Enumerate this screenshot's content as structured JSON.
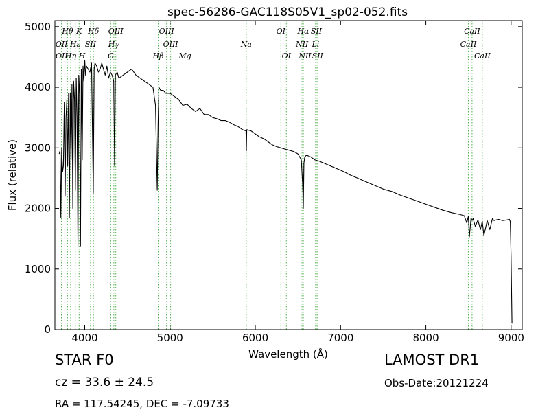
{
  "chart_data": {
    "type": "line",
    "title": "spec-56286-GAC118S05V1_sp02-052.fits",
    "xlabel": "Wavelength (Å)",
    "ylabel": "Flux (relative)",
    "xlim": [
      3650,
      9130
    ],
    "ylim": [
      0,
      5100
    ],
    "xticks": [
      4000,
      5000,
      6000,
      7000,
      8000,
      9000
    ],
    "yticks": [
      0,
      1000,
      2000,
      3000,
      4000,
      5000
    ],
    "grid": false,
    "line_color": "#000000",
    "marker_color": "#4daf4a",
    "series": [
      {
        "x": [
          3700,
          3710,
          3720,
          3730,
          3740,
          3750,
          3760,
          3770,
          3780,
          3790,
          3800,
          3810,
          3820,
          3830,
          3840,
          3850,
          3860,
          3870,
          3880,
          3890,
          3900,
          3910,
          3920,
          3930,
          3940,
          3950,
          3960,
          3970,
          3980,
          3990,
          4000,
          4010,
          4020,
          4040,
          4060,
          4080,
          4100,
          4110,
          4120,
          4140,
          4160,
          4180,
          4200,
          4220,
          4240,
          4260,
          4280,
          4300,
          4320,
          4340,
          4350,
          4360,
          4380,
          4400,
          4450,
          4500,
          4550,
          4600,
          4650,
          4700,
          4750,
          4800,
          4830,
          4850,
          4860,
          4870,
          4890,
          4920,
          4950,
          5000,
          5050,
          5100,
          5150,
          5200,
          5250,
          5300,
          5350,
          5400,
          5450,
          5500,
          5550,
          5600,
          5650,
          5700,
          5750,
          5800,
          5850,
          5890,
          5895,
          5900,
          5950,
          6000,
          6050,
          6100,
          6150,
          6200,
          6250,
          6300,
          6350,
          6400,
          6450,
          6500,
          6540,
          6555,
          6563,
          6570,
          6580,
          6600,
          6650,
          6700,
          6750,
          6800,
          6850,
          6900,
          6950,
          7000,
          7050,
          7100,
          7150,
          7200,
          7250,
          7300,
          7350,
          7400,
          7450,
          7500,
          7600,
          7700,
          7800,
          7900,
          8000,
          8100,
          8200,
          8300,
          8400,
          8450,
          8480,
          8498,
          8510,
          8530,
          8542,
          8555,
          8580,
          8610,
          8640,
          8662,
          8680,
          8720,
          8750,
          8780,
          8800,
          8850,
          8900,
          8950,
          8980,
          8990,
          9000,
          9010
        ],
        "y": [
          2900,
          2950,
          1850,
          3000,
          2600,
          2700,
          3750,
          2200,
          3500,
          3800,
          2700,
          3900,
          1850,
          3900,
          2800,
          4050,
          2000,
          4100,
          3800,
          2300,
          4150,
          3500,
          1380,
          4200,
          3900,
          1380,
          4300,
          2800,
          4350,
          4100,
          4450,
          4200,
          4350,
          4300,
          4250,
          4400,
          2250,
          4300,
          4400,
          4350,
          4250,
          4300,
          4400,
          4300,
          4200,
          4350,
          4150,
          4250,
          4200,
          4100,
          2700,
          4200,
          4250,
          4150,
          4200,
          4250,
          4300,
          4200,
          4150,
          4100,
          4050,
          4000,
          3700,
          2300,
          3400,
          4000,
          3950,
          3950,
          3900,
          3900,
          3850,
          3800,
          3700,
          3720,
          3650,
          3600,
          3650,
          3550,
          3550,
          3500,
          3480,
          3450,
          3450,
          3420,
          3380,
          3350,
          3300,
          3280,
          2950,
          3300,
          3280,
          3230,
          3180,
          3150,
          3100,
          3050,
          3020,
          3000,
          2980,
          2960,
          2940,
          2900,
          2800,
          2400,
          2000,
          2750,
          2850,
          2880,
          2850,
          2800,
          2780,
          2750,
          2720,
          2690,
          2660,
          2630,
          2600,
          2560,
          2530,
          2500,
          2470,
          2440,
          2410,
          2380,
          2350,
          2320,
          2280,
          2220,
          2170,
          2120,
          2070,
          2020,
          1970,
          1930,
          1900,
          1880,
          1760,
          1870,
          1530,
          1840,
          1800,
          1830,
          1700,
          1810,
          1650,
          1790,
          1550,
          1800,
          1650,
          1830,
          1800,
          1820,
          1800,
          1810,
          1820,
          1780,
          1200,
          100
        ]
      }
    ],
    "lines": [
      {
        "label": "OII",
        "wave": 3727,
        "row": 2
      },
      {
        "label": "OII",
        "wave": 3729,
        "row": 3
      },
      {
        "label": "Hθ",
        "wave": 3798,
        "row": 1
      },
      {
        "label": "Hη",
        "wave": 3835,
        "row": 3
      },
      {
        "label": "Hε",
        "wave": 3889,
        "row": 2
      },
      {
        "label": "K",
        "wave": 3934,
        "row": 1
      },
      {
        "label": "SII",
        "wave": 4068,
        "row": 2
      },
      {
        "label": "H",
        "wave": 3968,
        "row": 3
      },
      {
        "label": "Hδ",
        "wave": 4102,
        "row": 1
      },
      {
        "label": "OIII",
        "wave": 4364,
        "row": 1
      },
      {
        "label": "Hγ",
        "wave": 4341,
        "row": 2
      },
      {
        "label": "G",
        "wave": 4305,
        "row": 3
      },
      {
        "label": "OIII",
        "wave": 4959,
        "row": 1
      },
      {
        "label": "OIII",
        "wave": 5007,
        "row": 2
      },
      {
        "label": "Hβ",
        "wave": 4861,
        "row": 3
      },
      {
        "label": "Mg",
        "wave": 5175,
        "row": 3
      },
      {
        "label": "Na",
        "wave": 5894,
        "row": 2
      },
      {
        "label": "OI",
        "wave": 6300,
        "row": 1
      },
      {
        "label": "OI",
        "wave": 6364,
        "row": 3
      },
      {
        "label": "Hα",
        "wave": 6563,
        "row": 1
      },
      {
        "label": "SII",
        "wave": 6716,
        "row": 1
      },
      {
        "label": "NII",
        "wave": 6548,
        "row": 2
      },
      {
        "label": "NII",
        "wave": 6583,
        "row": 3
      },
      {
        "label": "Li",
        "wave": 6707,
        "row": 2
      },
      {
        "label": "SII",
        "wave": 6731,
        "row": 3
      },
      {
        "label": "CaII",
        "wave": 8542,
        "row": 1
      },
      {
        "label": "CaII",
        "wave": 8498,
        "row": 2
      },
      {
        "label": "CaII",
        "wave": 8662,
        "row": 3
      }
    ]
  },
  "info": {
    "class_label": "STAR   F0",
    "survey_label": "LAMOST DR1",
    "cz_label": "cz = 33.6  ± 24.5",
    "obs_date_label": "Obs-Date:20121224",
    "radec_label": "RA = 117.54245, DEC = -7.09733"
  }
}
